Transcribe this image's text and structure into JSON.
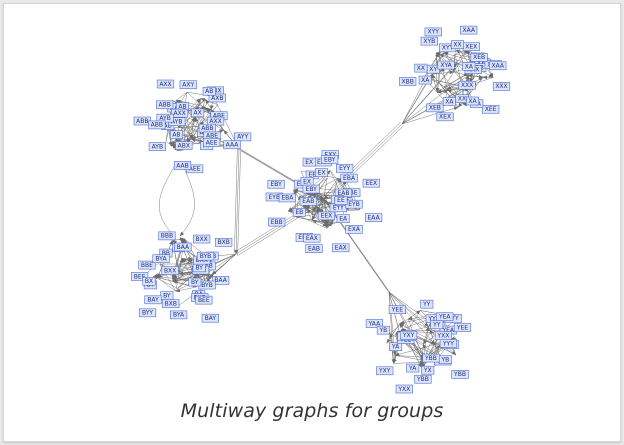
{
  "caption": "Multiway graphs for groups",
  "colors": {
    "node_fill": "#dbe4fb",
    "node_border": "#4a6ad8",
    "node_text": "#1f2f7a",
    "edge": "#6c6c6c",
    "frame_background": "#ffffff",
    "page_background": "#e9e9e9"
  },
  "graph": {
    "labels": [
      "XXX",
      "XEE",
      "XX",
      "XEX",
      "XEB",
      "XBB",
      "XY",
      "XYB",
      "XYY",
      "XAA",
      "XA",
      "XYA",
      "AYY",
      "AAA",
      "AY",
      "AEE",
      "AAB",
      "AYB",
      "AB",
      "ABB",
      "AX",
      "AXX",
      "AXY",
      "ABX",
      "AXB",
      "ABE",
      "BAA",
      "BA",
      "BAY",
      "BYA",
      "BY",
      "BYY",
      "BEE",
      "BBE",
      "BB",
      "BBB",
      "BX",
      "BXX",
      "BXB",
      "BYB",
      "EAA",
      "EA",
      "EXA",
      "EAX",
      "EAB",
      "EBA",
      "EB",
      "EBB",
      "EYB",
      "EBY",
      "EY",
      "EE",
      "EX",
      "EXY",
      "EYY",
      "EEX",
      "EBE",
      "YB",
      "YBB",
      "YX",
      "YXX",
      "YXY",
      "YA",
      "YAA",
      "YEE",
      "YY",
      "YYY",
      "YEA"
    ]
  }
}
